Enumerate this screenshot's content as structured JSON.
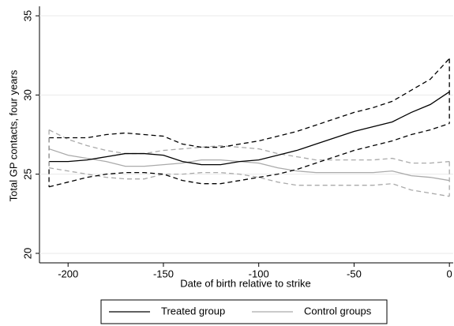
{
  "chart_data": {
    "type": "line",
    "x_label": "Date of birth relative to strike",
    "y_label": "Total GP contacts, four years",
    "x": [
      -210,
      -200,
      -190,
      -180,
      -170,
      -160,
      -150,
      -140,
      -130,
      -120,
      -110,
      -100,
      -90,
      -80,
      -70,
      -60,
      -50,
      -40,
      -30,
      -20,
      -10,
      0
    ],
    "series": [
      {
        "name": "Treated group",
        "color": "#000000",
        "dash": false,
        "values": [
          25.8,
          25.8,
          25.9,
          26.1,
          26.3,
          26.3,
          26.2,
          25.8,
          25.6,
          25.6,
          25.8,
          25.9,
          26.2,
          26.5,
          26.9,
          27.3,
          27.7,
          28.0,
          28.3,
          28.9,
          29.4,
          30.2
        ]
      },
      {
        "color": "#000000",
        "dash": true,
        "values": [
          27.3,
          27.3,
          27.3,
          27.5,
          27.6,
          27.5,
          27.4,
          26.9,
          26.7,
          26.7,
          26.9,
          27.1,
          27.4,
          27.7,
          28.1,
          28.5,
          28.9,
          29.2,
          29.6,
          30.3,
          31.0,
          32.3
        ]
      },
      {
        "color": "#000000",
        "dash": true,
        "values": [
          24.2,
          24.5,
          24.8,
          25.0,
          25.1,
          25.1,
          25.0,
          24.6,
          24.4,
          24.4,
          24.6,
          24.8,
          25.0,
          25.3,
          25.7,
          26.1,
          26.5,
          26.8,
          27.1,
          27.5,
          27.8,
          28.2
        ]
      },
      {
        "name": "Control groups",
        "color": "#aaaaaa",
        "dash": false,
        "values": [
          26.6,
          26.2,
          26.0,
          25.8,
          25.5,
          25.5,
          25.6,
          25.7,
          25.9,
          25.9,
          25.8,
          25.7,
          25.4,
          25.2,
          25.1,
          25.1,
          25.1,
          25.1,
          25.2,
          24.9,
          24.8,
          24.6
        ]
      },
      {
        "color": "#aaaaaa",
        "dash": true,
        "values": [
          27.8,
          27.2,
          26.8,
          26.5,
          26.3,
          26.3,
          26.5,
          26.6,
          26.7,
          26.8,
          26.7,
          26.6,
          26.3,
          26.1,
          25.9,
          25.9,
          25.9,
          25.9,
          26.0,
          25.7,
          25.7,
          25.8
        ]
      },
      {
        "color": "#aaaaaa",
        "dash": true,
        "values": [
          25.4,
          25.2,
          25.0,
          24.8,
          24.7,
          24.7,
          25.0,
          25.0,
          25.1,
          25.1,
          25.0,
          24.8,
          24.5,
          24.3,
          24.3,
          24.3,
          24.3,
          24.3,
          24.4,
          24.0,
          23.8,
          23.6
        ]
      }
    ],
    "xlim": [
      -215,
      2
    ],
    "xticks": [
      -200,
      -150,
      -100,
      -50,
      0
    ],
    "ylim": [
      19.4,
      35.6
    ],
    "yticks": [
      20,
      25,
      30,
      35
    ],
    "grid": true,
    "legend": "bottom"
  }
}
